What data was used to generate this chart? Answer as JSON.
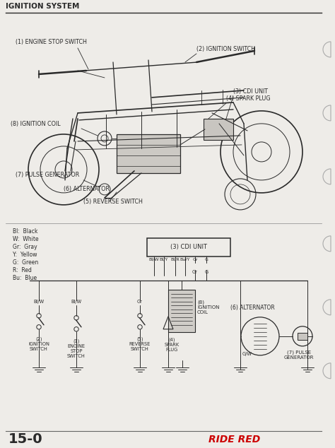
{
  "title": "IGNITION SYSTEM",
  "page_number": "15-0",
  "brand": "RIDE RED",
  "bg_color": "#eeece8",
  "line_color": "#2a2a2a",
  "title_color": "#1a1a1a",
  "brand_color": "#cc0000",
  "color_legend": [
    "Bl:  Black",
    "W:  White",
    "Gr:  Gray",
    "Y:  Yellow",
    "G:  Green",
    "R:  Red",
    "Bu:  Blue"
  ],
  "cdi_wires": [
    "Bl/W",
    "Bl/Y",
    "Bl/R",
    "Bu/Y",
    "Gr",
    "G"
  ]
}
